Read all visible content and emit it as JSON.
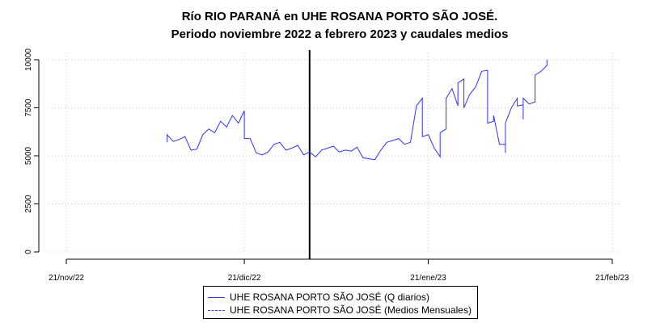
{
  "chart_data": {
    "type": "line",
    "title": "Río RIO PARANÁ en UHE ROSANA PORTO SÃO JOSÉ.",
    "subtitle": "Periodo noviembre 2022 a febrero 2023 y caudales medios",
    "xlabel": "",
    "ylabel": "",
    "x_ticks": [
      "21/nov/22",
      "21/dic/22",
      "21/ene/23",
      "21/feb/23"
    ],
    "y_ticks": [
      "0",
      "2500",
      "5000",
      "7500",
      "10000"
    ],
    "ylim": [
      0,
      10000
    ],
    "xlim": [
      "2022-11-21",
      "2023-02-21"
    ],
    "grid": true,
    "vertical_marker": "2023-01-01",
    "legend_position": "bottom",
    "series": [
      {
        "name": "UHE ROSANA PORTO SÃO JOSÉ (Q diarios)",
        "color": "#3333ee",
        "style": "solid",
        "points": [
          [
            "2022-12-08",
            5700
          ],
          [
            "2022-12-08",
            6100
          ],
          [
            "2022-12-09",
            5750
          ],
          [
            "2022-12-10",
            5850
          ],
          [
            "2022-12-11",
            6000
          ],
          [
            "2022-12-12",
            5300
          ],
          [
            "2022-12-13",
            5350
          ],
          [
            "2022-12-14",
            6100
          ],
          [
            "2022-12-15",
            6400
          ],
          [
            "2022-12-16",
            6200
          ],
          [
            "2022-12-17",
            6800
          ],
          [
            "2022-12-18",
            6500
          ],
          [
            "2022-12-19",
            7100
          ],
          [
            "2022-12-20",
            6700
          ],
          [
            "2022-12-21",
            7350
          ],
          [
            "2022-12-21",
            5900
          ],
          [
            "2022-12-22",
            5900
          ],
          [
            "2022-12-23",
            5150
          ],
          [
            "2022-12-24",
            5050
          ],
          [
            "2022-12-25",
            5200
          ],
          [
            "2022-12-26",
            5600
          ],
          [
            "2022-12-27",
            5700
          ],
          [
            "2022-12-28",
            5300
          ],
          [
            "2022-12-29",
            5400
          ],
          [
            "2022-12-30",
            5550
          ],
          [
            "2022-12-31",
            5050
          ],
          [
            "2023-01-01",
            5200
          ],
          [
            "2023-01-02",
            4950
          ],
          [
            "2023-01-03",
            5300
          ],
          [
            "2023-01-04",
            5400
          ],
          [
            "2023-01-05",
            5500
          ],
          [
            "2023-01-06",
            5200
          ],
          [
            "2023-01-07",
            5300
          ],
          [
            "2023-01-08",
            5250
          ],
          [
            "2023-01-09",
            5450
          ],
          [
            "2023-01-10",
            4900
          ],
          [
            "2023-01-11",
            4850
          ],
          [
            "2023-01-12",
            4800
          ],
          [
            "2023-01-13",
            5300
          ],
          [
            "2023-01-14",
            5700
          ],
          [
            "2023-01-15",
            5800
          ],
          [
            "2023-01-16",
            5900
          ],
          [
            "2023-01-17",
            5600
          ],
          [
            "2023-01-18",
            5700
          ],
          [
            "2023-01-19",
            7600
          ],
          [
            "2023-01-20",
            8000
          ],
          [
            "2023-01-20",
            6000
          ],
          [
            "2023-01-21",
            6100
          ],
          [
            "2023-01-22",
            5400
          ],
          [
            "2023-01-23",
            4950
          ],
          [
            "2023-01-23",
            6200
          ],
          [
            "2023-01-24",
            6400
          ],
          [
            "2023-01-24",
            8000
          ],
          [
            "2023-01-25",
            8500
          ],
          [
            "2023-01-26",
            7600
          ],
          [
            "2023-01-26",
            8800
          ],
          [
            "2023-01-27",
            9000
          ],
          [
            "2023-01-27",
            7500
          ],
          [
            "2023-01-28",
            8200
          ],
          [
            "2023-01-29",
            8600
          ],
          [
            "2023-01-30",
            9400
          ],
          [
            "2023-01-31",
            9450
          ],
          [
            "2023-01-31",
            6700
          ],
          [
            "2023-02-01",
            6800
          ],
          [
            "2023-02-01",
            7100
          ],
          [
            "2023-02-02",
            5600
          ],
          [
            "2023-02-03",
            5600
          ],
          [
            "2023-02-03",
            5150
          ],
          [
            "2023-02-03",
            6700
          ],
          [
            "2023-02-04",
            7500
          ],
          [
            "2023-02-05",
            8000
          ],
          [
            "2023-02-05",
            7600
          ],
          [
            "2023-02-06",
            7650
          ],
          [
            "2023-02-06",
            6900
          ],
          [
            "2023-02-06",
            8000
          ],
          [
            "2023-02-07",
            7700
          ],
          [
            "2023-02-08",
            7800
          ],
          [
            "2023-02-08",
            9200
          ],
          [
            "2023-02-09",
            9400
          ],
          [
            "2023-02-10",
            9700
          ],
          [
            "2023-02-10",
            10000
          ]
        ]
      },
      {
        "name": "UHE ROSANA PORTO SÃO JOSÉ (Medios Mensuales)",
        "color": "#3333ee",
        "style": "dashed",
        "points": []
      }
    ]
  }
}
